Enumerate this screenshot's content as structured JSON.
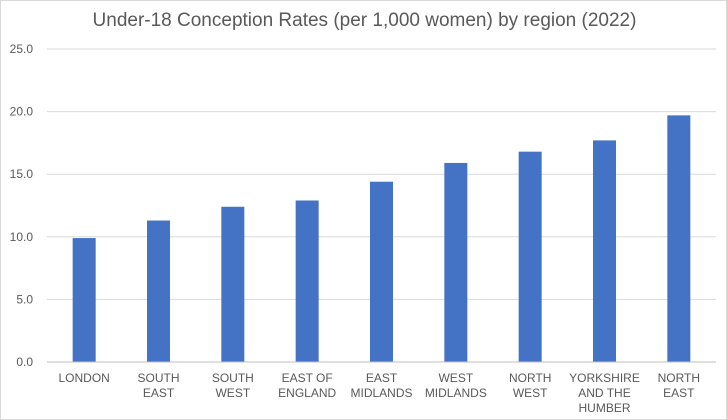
{
  "chart_data": {
    "type": "bar",
    "title": "Under-18 Conception Rates (per 1,000 women) by region (2022)",
    "xlabel": "",
    "ylabel": "",
    "categories": [
      "LONDON",
      "SOUTH EAST",
      "SOUTH WEST",
      "EAST OF ENGLAND",
      "EAST MIDLANDS",
      "WEST MIDLANDS",
      "NORTH WEST",
      "YORKSHIRE AND THE HUMBER",
      "NORTH EAST"
    ],
    "category_lines": [
      [
        "LONDON"
      ],
      [
        "SOUTH",
        "EAST"
      ],
      [
        "SOUTH",
        "WEST"
      ],
      [
        "EAST OF",
        "ENGLAND"
      ],
      [
        "EAST",
        "MIDLANDS"
      ],
      [
        "WEST",
        "MIDLANDS"
      ],
      [
        "NORTH",
        "WEST"
      ],
      [
        "YORKSHIRE",
        "AND THE",
        "HUMBER"
      ],
      [
        "NORTH",
        "EAST"
      ]
    ],
    "values": [
      9.9,
      11.3,
      12.4,
      12.9,
      14.4,
      15.9,
      16.8,
      17.7,
      19.7
    ],
    "ylim": [
      0,
      25
    ],
    "yticks": [
      "0.0",
      "5.0",
      "10.0",
      "15.0",
      "20.0",
      "25.0"
    ],
    "grid": true,
    "legend": "none",
    "bar_color": "#4472c4"
  }
}
